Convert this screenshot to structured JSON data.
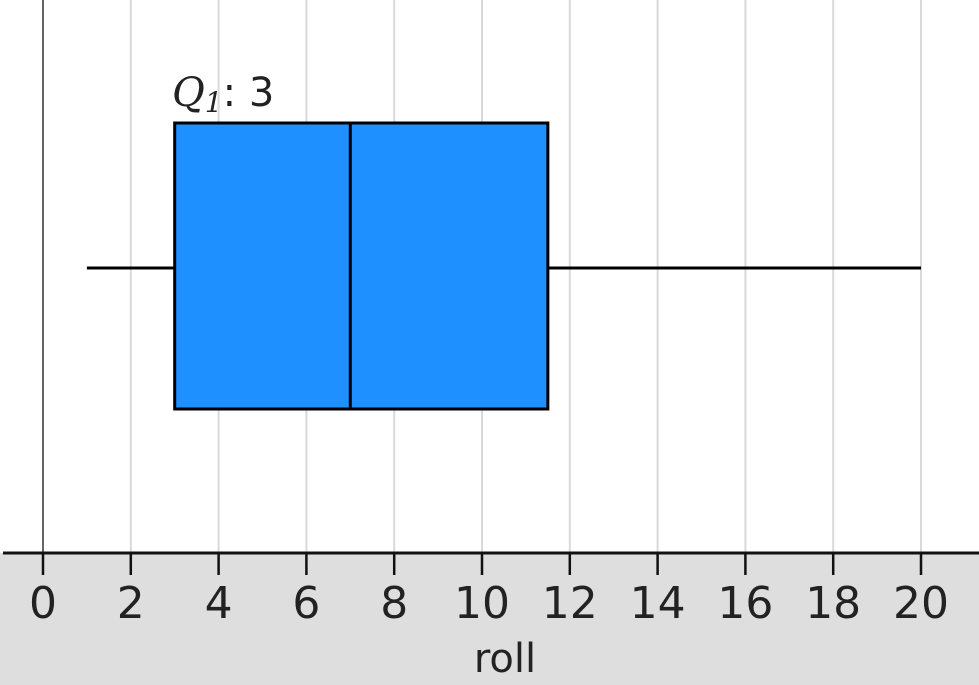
{
  "chart_data": {
    "type": "boxplot",
    "xlabel": "roll",
    "xlim": [
      -1,
      21
    ],
    "ticks": [
      0,
      2,
      4,
      6,
      8,
      10,
      12,
      14,
      16,
      18,
      20
    ],
    "grid": true,
    "box": {
      "min": 1,
      "q1": 3,
      "median": 7,
      "q3": 11.5,
      "max": 20,
      "color": "#1e90ff"
    },
    "annotation": {
      "stat": "Q",
      "subscript": "1",
      "separator": ": ",
      "value": "3"
    }
  },
  "colors": {
    "axis_band": "#dedede",
    "grid": "#d9d9d9",
    "axis": "#111111",
    "box_fill": "#1e90ff"
  }
}
